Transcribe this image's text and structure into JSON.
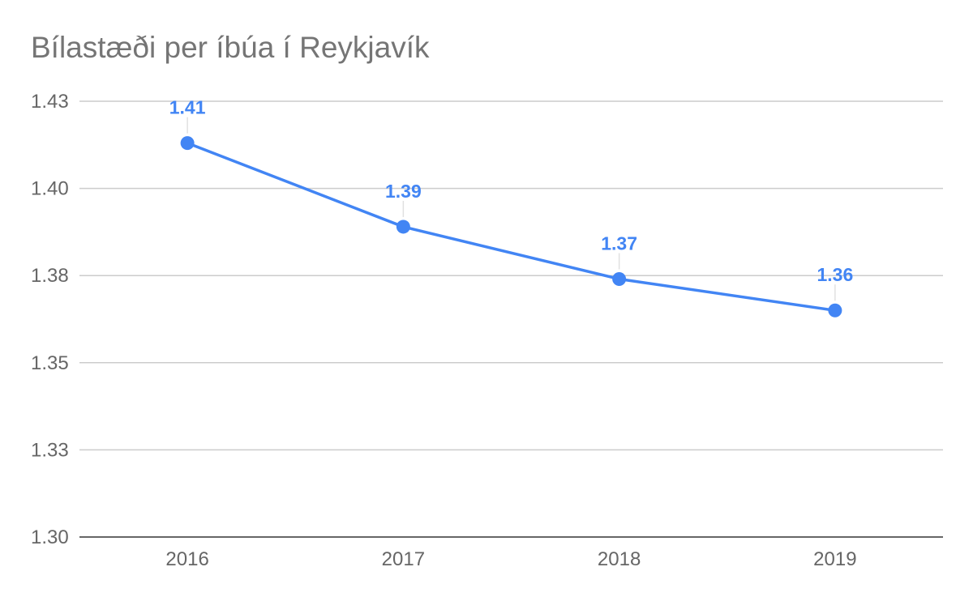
{
  "chart_data": {
    "type": "line",
    "title": "Bílastæði per íbúa í Reykjavík",
    "xlabel": "",
    "ylabel": "",
    "categories": [
      "2016",
      "2017",
      "2018",
      "2019"
    ],
    "series": [
      {
        "values": [
          1.413,
          1.389,
          1.374,
          1.365
        ],
        "data_labels": [
          "1.41",
          "1.39",
          "1.37",
          "1.36"
        ],
        "color": "#4285f4"
      }
    ],
    "ylim": [
      1.3,
      1.425
    ],
    "y_ticks": [
      1.3,
      1.325,
      1.35,
      1.375,
      1.4,
      1.425
    ],
    "y_tick_labels": [
      "1.30",
      "1.33",
      "1.35",
      "1.38",
      "1.40",
      "1.43"
    ],
    "grid": true,
    "legend": "none"
  }
}
